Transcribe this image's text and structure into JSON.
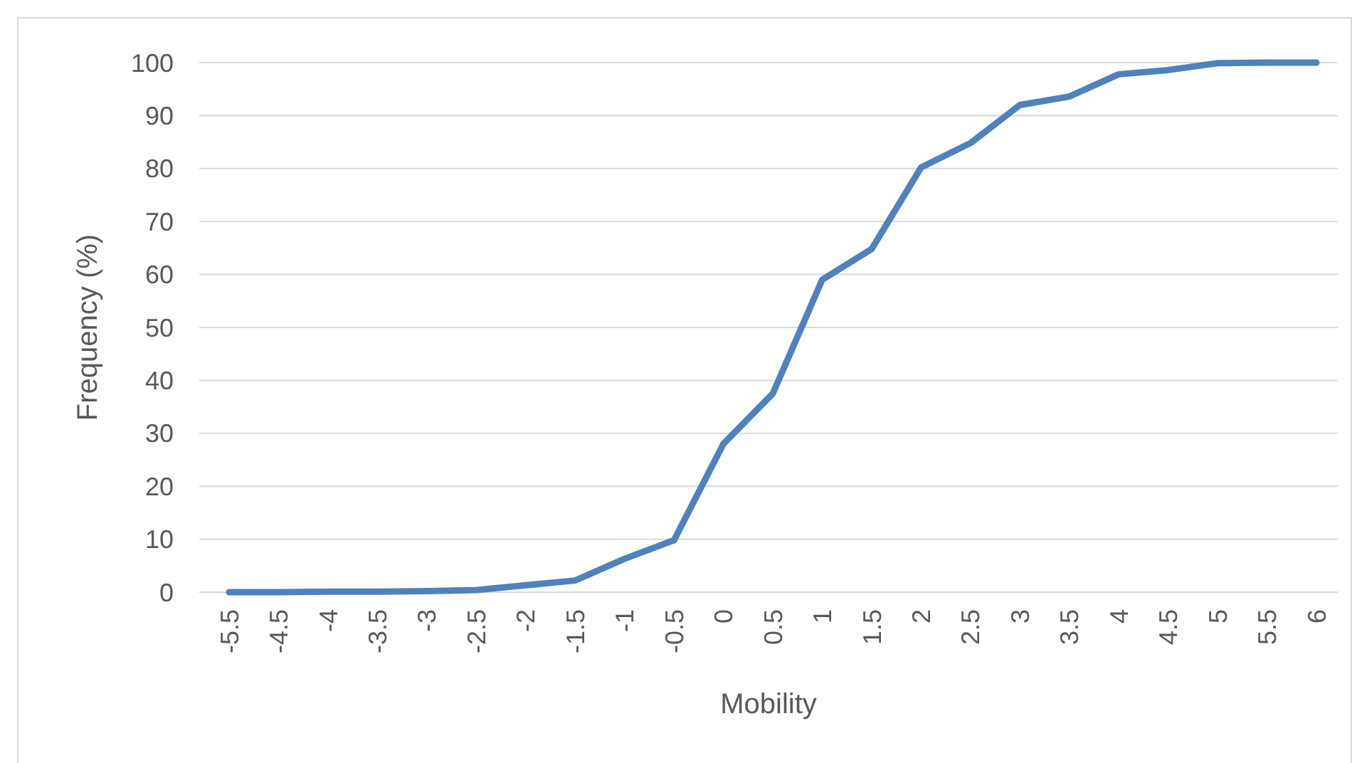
{
  "chart_data": {
    "type": "line",
    "xlabel": "Mobility",
    "ylabel": "Frequency (%)",
    "categories": [
      "-5.5",
      "-4.5",
      "-4",
      "-3.5",
      "-3",
      "-2.5",
      "-2",
      "-1.5",
      "-1",
      "-0.5",
      "0",
      "0.5",
      "1",
      "1.5",
      "2",
      "2.5",
      "3",
      "3.5",
      "4",
      "4.5",
      "5",
      "5.5",
      "6"
    ],
    "series": [
      {
        "color": "#4f81bd",
        "values": [
          0,
          0,
          0.1,
          0.1,
          0.2,
          0.4,
          1.3,
          2.2,
          6.3,
          9.8,
          28,
          37.5,
          59,
          64.8,
          80.2,
          84.8,
          92,
          93.6,
          97.8,
          98.6,
          99.9,
          100,
          100
        ]
      }
    ],
    "ylim": [
      0,
      100
    ],
    "yticks": [
      0,
      10,
      20,
      30,
      40,
      50,
      60,
      70,
      80,
      90,
      100
    ],
    "grid": "y",
    "marker": "none",
    "line_style": "solid"
  }
}
